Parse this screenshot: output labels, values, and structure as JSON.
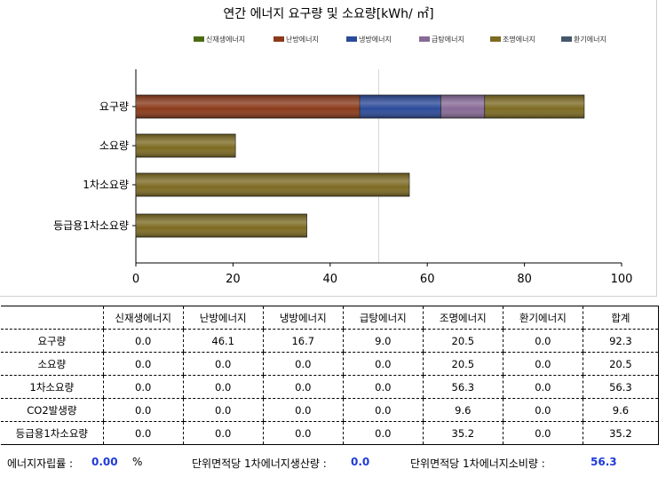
{
  "chart_data": {
    "type": "bar",
    "orientation": "horizontal",
    "stacked": true,
    "title": "연간 에너지 요구량 및 소요량[kWh/ ㎡]",
    "categories": [
      "요구량",
      "소요량",
      "1차소요량",
      "등급용1차소요량"
    ],
    "series": [
      {
        "name": "신재생에너지",
        "color": "#4b6b12",
        "values": [
          0,
          0,
          0,
          0
        ]
      },
      {
        "name": "난방에너지",
        "color": "#8b3a1a",
        "values": [
          46.1,
          0,
          0,
          0
        ]
      },
      {
        "name": "냉방에너지",
        "color": "#2b4a99",
        "values": [
          16.7,
          0,
          0,
          0
        ]
      },
      {
        "name": "급탕에너지",
        "color": "#876a96",
        "values": [
          9.0,
          0,
          0,
          0
        ]
      },
      {
        "name": "조명에너지",
        "color": "#7d6b22",
        "values": [
          20.5,
          20.5,
          56.3,
          35.2
        ]
      },
      {
        "name": "환기에너지",
        "color": "#45586b",
        "values": [
          0,
          0,
          0,
          0
        ]
      }
    ],
    "xlim": [
      0,
      100
    ],
    "xticks": [
      "0",
      "20",
      "40",
      "60",
      "80",
      "100"
    ],
    "grid": "vertical line at 50",
    "legend": "top-right"
  },
  "table": {
    "headers": [
      "",
      "신재생에너지",
      "난방에너지",
      "냉방에너지",
      "급탕에너지",
      "조명에너지",
      "환기에너지",
      "합계"
    ],
    "rows": [
      [
        "요구량",
        "0.0",
        "46.1",
        "16.7",
        "9.0",
        "20.5",
        "0.0",
        "92.3"
      ],
      [
        "소요량",
        "0.0",
        "0.0",
        "0.0",
        "0.0",
        "20.5",
        "0.0",
        "20.5"
      ],
      [
        "1차소요량",
        "0.0",
        "0.0",
        "0.0",
        "0.0",
        "56.3",
        "0.0",
        "56.3"
      ],
      [
        "CO2발생량",
        "0.0",
        "0.0",
        "0.0",
        "0.0",
        "9.6",
        "0.0",
        "9.6"
      ],
      [
        "등급용1차소요량",
        "0.0",
        "0.0",
        "0.0",
        "0.0",
        "35.2",
        "0.0",
        "35.2"
      ]
    ]
  },
  "footer": {
    "self_sufficiency_label": "에너지자립률 :",
    "self_sufficiency_value": "0.00",
    "self_sufficiency_unit": "%",
    "production_label": "단위면적당 1차에너지생산량 :",
    "production_value": "0.0",
    "consumption_label": "단위면적당 1차에너지소비량 :",
    "consumption_value": "56.3"
  }
}
